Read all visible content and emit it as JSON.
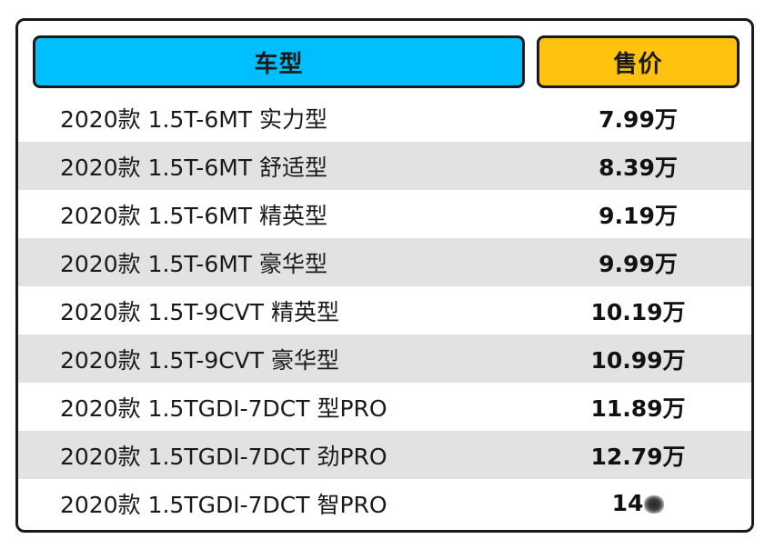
{
  "table": {
    "headers": {
      "model": "车型",
      "price": "售价"
    },
    "rows": [
      {
        "model": "2020款 1.5T-6MT 实力型",
        "price": "7.99万"
      },
      {
        "model": "2020款 1.5T-6MT 舒适型",
        "price": "8.39万"
      },
      {
        "model": "2020款 1.5T-6MT 精英型",
        "price": "9.19万"
      },
      {
        "model": "2020款 1.5T-6MT 豪华型",
        "price": "9.99万"
      },
      {
        "model": "2020款 1.5T-9CVT 精英型",
        "price": "10.19万"
      },
      {
        "model": "2020款 1.5T-9CVT 豪华型",
        "price": "10.99万"
      },
      {
        "model": "2020款 1.5TGDI-7DCT 型PRO",
        "price": "11.89万"
      },
      {
        "model": "2020款 1.5TGDI-7DCT 劲PRO",
        "price": "12.79万"
      },
      {
        "model": "2020款 1.5TGDI-7DCT 智PRO",
        "price": "14"
      }
    ]
  },
  "colors": {
    "header_model_bg": "#00bfff",
    "header_price_bg": "#ffc20e",
    "shaded_row_bg": "#e2e2e2",
    "border": "#1a1a1a"
  }
}
